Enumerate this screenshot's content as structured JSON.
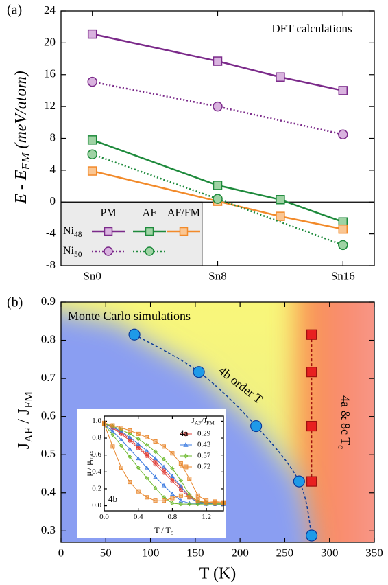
{
  "chart_data": [
    {
      "type": "line",
      "panel_label": "(a)",
      "annotation": "DFT calculations",
      "y_label": [
        "E - E",
        "FM",
        " (meV/atom)"
      ],
      "xlim": [
        -2,
        18
      ],
      "xticks": [
        {
          "value": 0,
          "label": "Sn0"
        },
        {
          "value": 8,
          "label": "Sn8"
        },
        {
          "value": 16,
          "label": "Sn16"
        }
      ],
      "ylim": [
        -8,
        24
      ],
      "yticks": [
        -8,
        -4,
        0,
        4,
        8,
        12,
        16,
        20,
        24
      ],
      "legend": {
        "columns": [
          "PM",
          "AF",
          "AF/FM"
        ],
        "rows": [
          [
            "Ni",
            "48"
          ],
          [
            "Ni",
            "50"
          ]
        ]
      },
      "series": [
        {
          "color": "#7b2a8a",
          "fill": "#d9b3df",
          "marker": "square",
          "dash": "solid",
          "x": [
            0,
            8,
            12,
            16
          ],
          "values": [
            21.1,
            17.7,
            15.7,
            14.0
          ]
        },
        {
          "color": "#1e8a3c",
          "fill": "#9fd3a4",
          "marker": "square",
          "dash": "solid",
          "x": [
            0,
            8,
            12,
            16
          ],
          "values": [
            7.8,
            2.1,
            0.3,
            -2.5
          ]
        },
        {
          "color": "#f28a2a",
          "fill": "#fac693",
          "marker": "square",
          "dash": "solid",
          "x": [
            0,
            8,
            12,
            16
          ],
          "values": [
            3.9,
            0.1,
            -1.8,
            -3.4
          ]
        },
        {
          "color": "#7b2a8a",
          "fill": "#d9b3df",
          "marker": "circle",
          "dash": "dotted",
          "x": [
            0,
            8,
            16
          ],
          "values": [
            15.1,
            12.0,
            8.5
          ]
        },
        {
          "color": "#1e8a3c",
          "fill": "#9fd3a4",
          "marker": "circle",
          "dash": "dotted",
          "x": [
            0,
            8,
            16
          ],
          "values": [
            6.0,
            0.4,
            -5.4
          ]
        }
      ]
    },
    {
      "type": "scatter",
      "panel_label": "(b)",
      "annotation": "Monte Carlo simulations",
      "x_label": "T (K)",
      "y_label": [
        "J",
        "AF",
        " / J",
        "FM"
      ],
      "xlim": [
        0,
        350
      ],
      "xticks": [
        0,
        50,
        100,
        150,
        200,
        250,
        300,
        350
      ],
      "ylim": [
        0.27,
        0.9
      ],
      "yticks": [
        0.3,
        0.4,
        0.5,
        0.6,
        0.7,
        0.8,
        0.9
      ],
      "series": [
        {
          "label": "4b order  T",
          "color": "#0a3a9a",
          "fill": "#1e9ae8",
          "marker": "circle",
          "x": [
            82,
            154,
            218,
            266,
            280
          ],
          "values": [
            0.815,
            0.717,
            0.575,
            0.43,
            0.288
          ]
        },
        {
          "label": [
            "4a & 8c T",
            "c"
          ],
          "color": "#a01010",
          "fill": "#e82020",
          "marker": "square",
          "x": [
            280,
            280,
            280,
            280
          ],
          "values": [
            0.815,
            0.717,
            0.575,
            0.43
          ]
        }
      ],
      "inset": {
        "type": "line",
        "x_label": [
          "T / T",
          "c"
        ],
        "y_label": [
          "μ / μ",
          "max"
        ],
        "labels": [
          "4a",
          "4b"
        ],
        "legend_title": [
          "J",
          "AF",
          "/J",
          "FM"
        ],
        "xlim": [
          0,
          1.4
        ],
        "xticks": [
          {
            "value": 0,
            "label": "0.0"
          },
          0.4,
          0.8,
          1.2
        ],
        "ylim": [
          -0.06,
          1.06
        ],
        "yticks": [
          {
            "value": 0,
            "label": "0.0"
          },
          0.2,
          0.4,
          0.6,
          0.8,
          {
            "value": 1,
            "label": "1.0"
          }
        ],
        "x": [
          0,
          0.1,
          0.2,
          0.3,
          0.4,
          0.5,
          0.6,
          0.7,
          0.8,
          0.9,
          1.0,
          1.1,
          1.2,
          1.3,
          1.4
        ],
        "series": [
          {
            "name": "0.29",
            "color": "#e0403a",
            "marker": "circle",
            "curves": [
              [
                0.97,
                0.93,
                0.87,
                0.79,
                0.7,
                0.61,
                0.52,
                0.42,
                0.32,
                0.22,
                0.12,
                0.05,
                0.03,
                0.02,
                0.02
              ],
              [
                0.97,
                0.92,
                0.85,
                0.77,
                0.68,
                0.59,
                0.49,
                0.39,
                0.29,
                0.19,
                0.1,
                0.04,
                0.03,
                0.02,
                0.02
              ]
            ]
          },
          {
            "name": "0.43",
            "color": "#3a7ae0",
            "marker": "triangle",
            "curves": [
              [
                0.97,
                0.93,
                0.88,
                0.81,
                0.73,
                0.65,
                0.56,
                0.46,
                0.35,
                0.23,
                0.1,
                0.04,
                0.03,
                0.02,
                0.02
              ],
              [
                0.96,
                0.88,
                0.78,
                0.67,
                0.56,
                0.45,
                0.34,
                0.24,
                0.14,
                0.06,
                0.03,
                0.03,
                0.02,
                0.02,
                0.02
              ]
            ]
          },
          {
            "name": "0.57",
            "color": "#6ab82a",
            "marker": "diamond",
            "curves": [
              [
                0.97,
                0.94,
                0.9,
                0.85,
                0.79,
                0.72,
                0.64,
                0.55,
                0.44,
                0.3,
                0.13,
                0.05,
                0.04,
                0.03,
                0.03
              ],
              [
                0.96,
                0.84,
                0.71,
                0.58,
                0.45,
                0.33,
                0.21,
                0.1,
                0.03,
                0.02,
                0.02,
                0.02,
                0.02,
                0.02,
                0.02
              ]
            ]
          },
          {
            "name": "0.72",
            "color": "#e8852a",
            "marker": "square",
            "curves": [
              [
                0.98,
                0.95,
                0.92,
                0.89,
                0.85,
                0.81,
                0.76,
                0.7,
                0.62,
                0.5,
                0.32,
                0.12,
                0.06,
                0.05,
                0.04
              ],
              [
                0.97,
                0.7,
                0.45,
                0.28,
                0.17,
                0.1,
                0.06,
                0.06,
                0.09,
                0.12,
                0.1,
                0.06,
                0.04,
                0.04,
                0.03
              ]
            ]
          }
        ]
      }
    }
  ]
}
